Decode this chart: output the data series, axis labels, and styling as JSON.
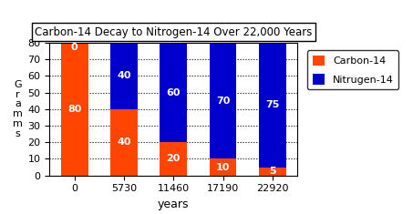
{
  "title": "Carbon-14 Decay to Nitrogen-14 Over 22,000 Years",
  "categories": [
    "0",
    "5730",
    "11460",
    "17190",
    "22920"
  ],
  "carbon_values": [
    80,
    40,
    20,
    10,
    5
  ],
  "nitrogen_values": [
    0,
    40,
    60,
    70,
    75
  ],
  "carbon_color": "#FF4500",
  "nitrogen_color": "#0000CC",
  "xlabel": "years",
  "ylabel": "G\nr\na\nm\nm\ns",
  "ylim": [
    0,
    80
  ],
  "yticks": [
    0,
    10,
    20,
    30,
    40,
    50,
    60,
    70,
    80
  ],
  "legend_labels": [
    "Carbon-14",
    "Nitrugen-14"
  ],
  "bg_color": "#FFFFFF",
  "bar_width": 0.55,
  "figsize": [
    4.53,
    2.35
  ],
  "dpi": 100
}
